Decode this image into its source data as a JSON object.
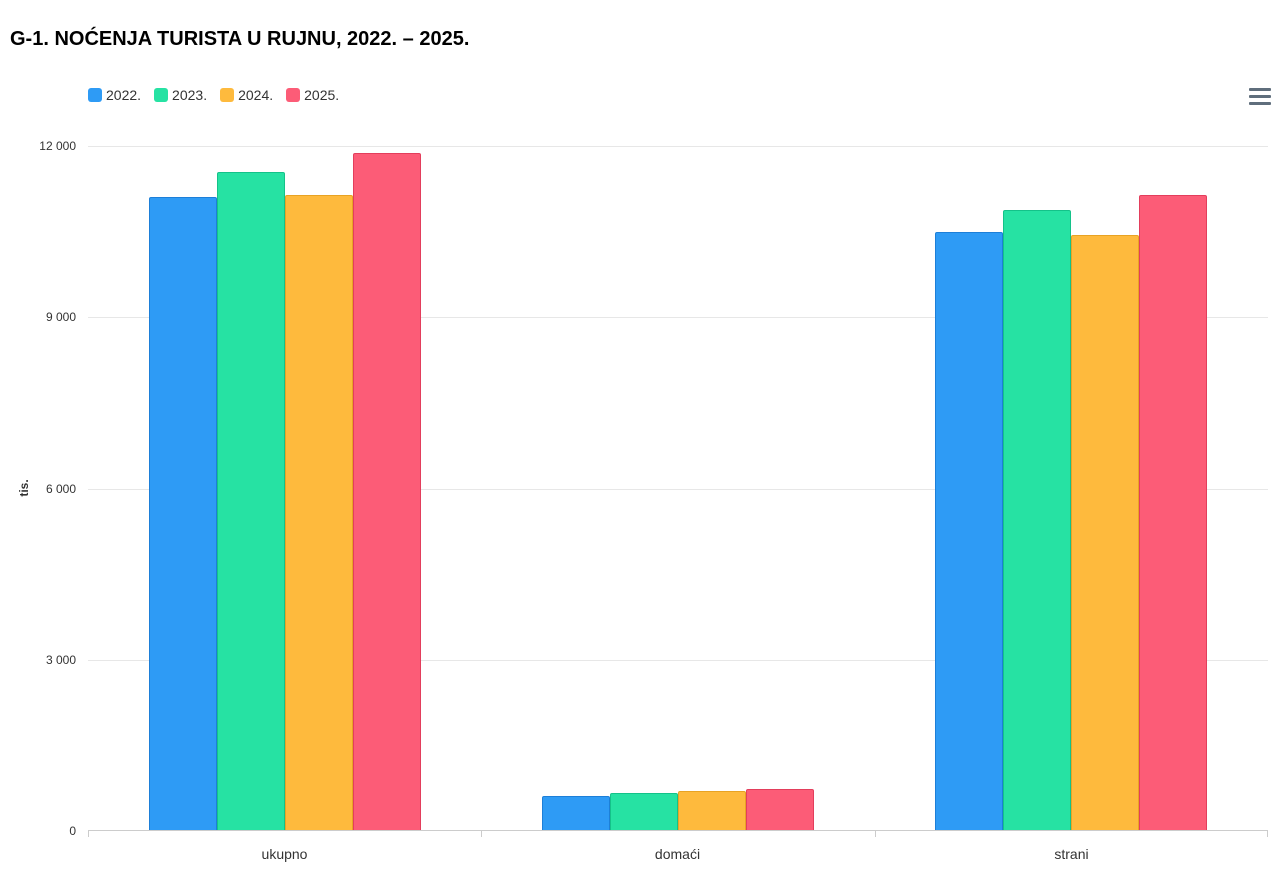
{
  "title": "G-1. NOĆENJA TURISTA U RUJNU, 2022. – 2025.",
  "toolbar": {
    "menu_icon": "hamburger-menu-icon"
  },
  "axis_colors": {
    "gridline": "#e7e7e7",
    "axis_line": "#cccccc",
    "label": "#333333"
  },
  "chart_data": {
    "type": "bar",
    "title": "G-1. NOĆENJA TURISTA U RUJNU, 2022. – 2025.",
    "categories": [
      "ukupno",
      "domaći",
      "strani"
    ],
    "series": [
      {
        "name": "2022.",
        "color": "#2E9BF5",
        "border_color": "#1d7fd8",
        "values": [
          11105,
          615,
          10490
        ]
      },
      {
        "name": "2023.",
        "color": "#26E2A3",
        "border_color": "#14c289",
        "values": [
          11550,
          665,
          10885
        ]
      },
      {
        "name": "2024.",
        "color": "#FEBA3D",
        "border_color": "#e8a324",
        "values": [
          11140,
          700,
          10440
        ]
      },
      {
        "name": "2025.",
        "color": "#FC5C77",
        "border_color": "#e33e5c",
        "values": [
          11880,
          740,
          11140
        ]
      }
    ],
    "xlabel": "",
    "ylabel": "tis.",
    "ylim": [
      0,
      12000
    ],
    "yticks": [
      0,
      3000,
      6000,
      9000,
      12000
    ],
    "ytick_labels": [
      "0",
      "3 000",
      "6 000",
      "9 000",
      "12 000"
    ],
    "grid": true,
    "legend_position": "top-left"
  }
}
